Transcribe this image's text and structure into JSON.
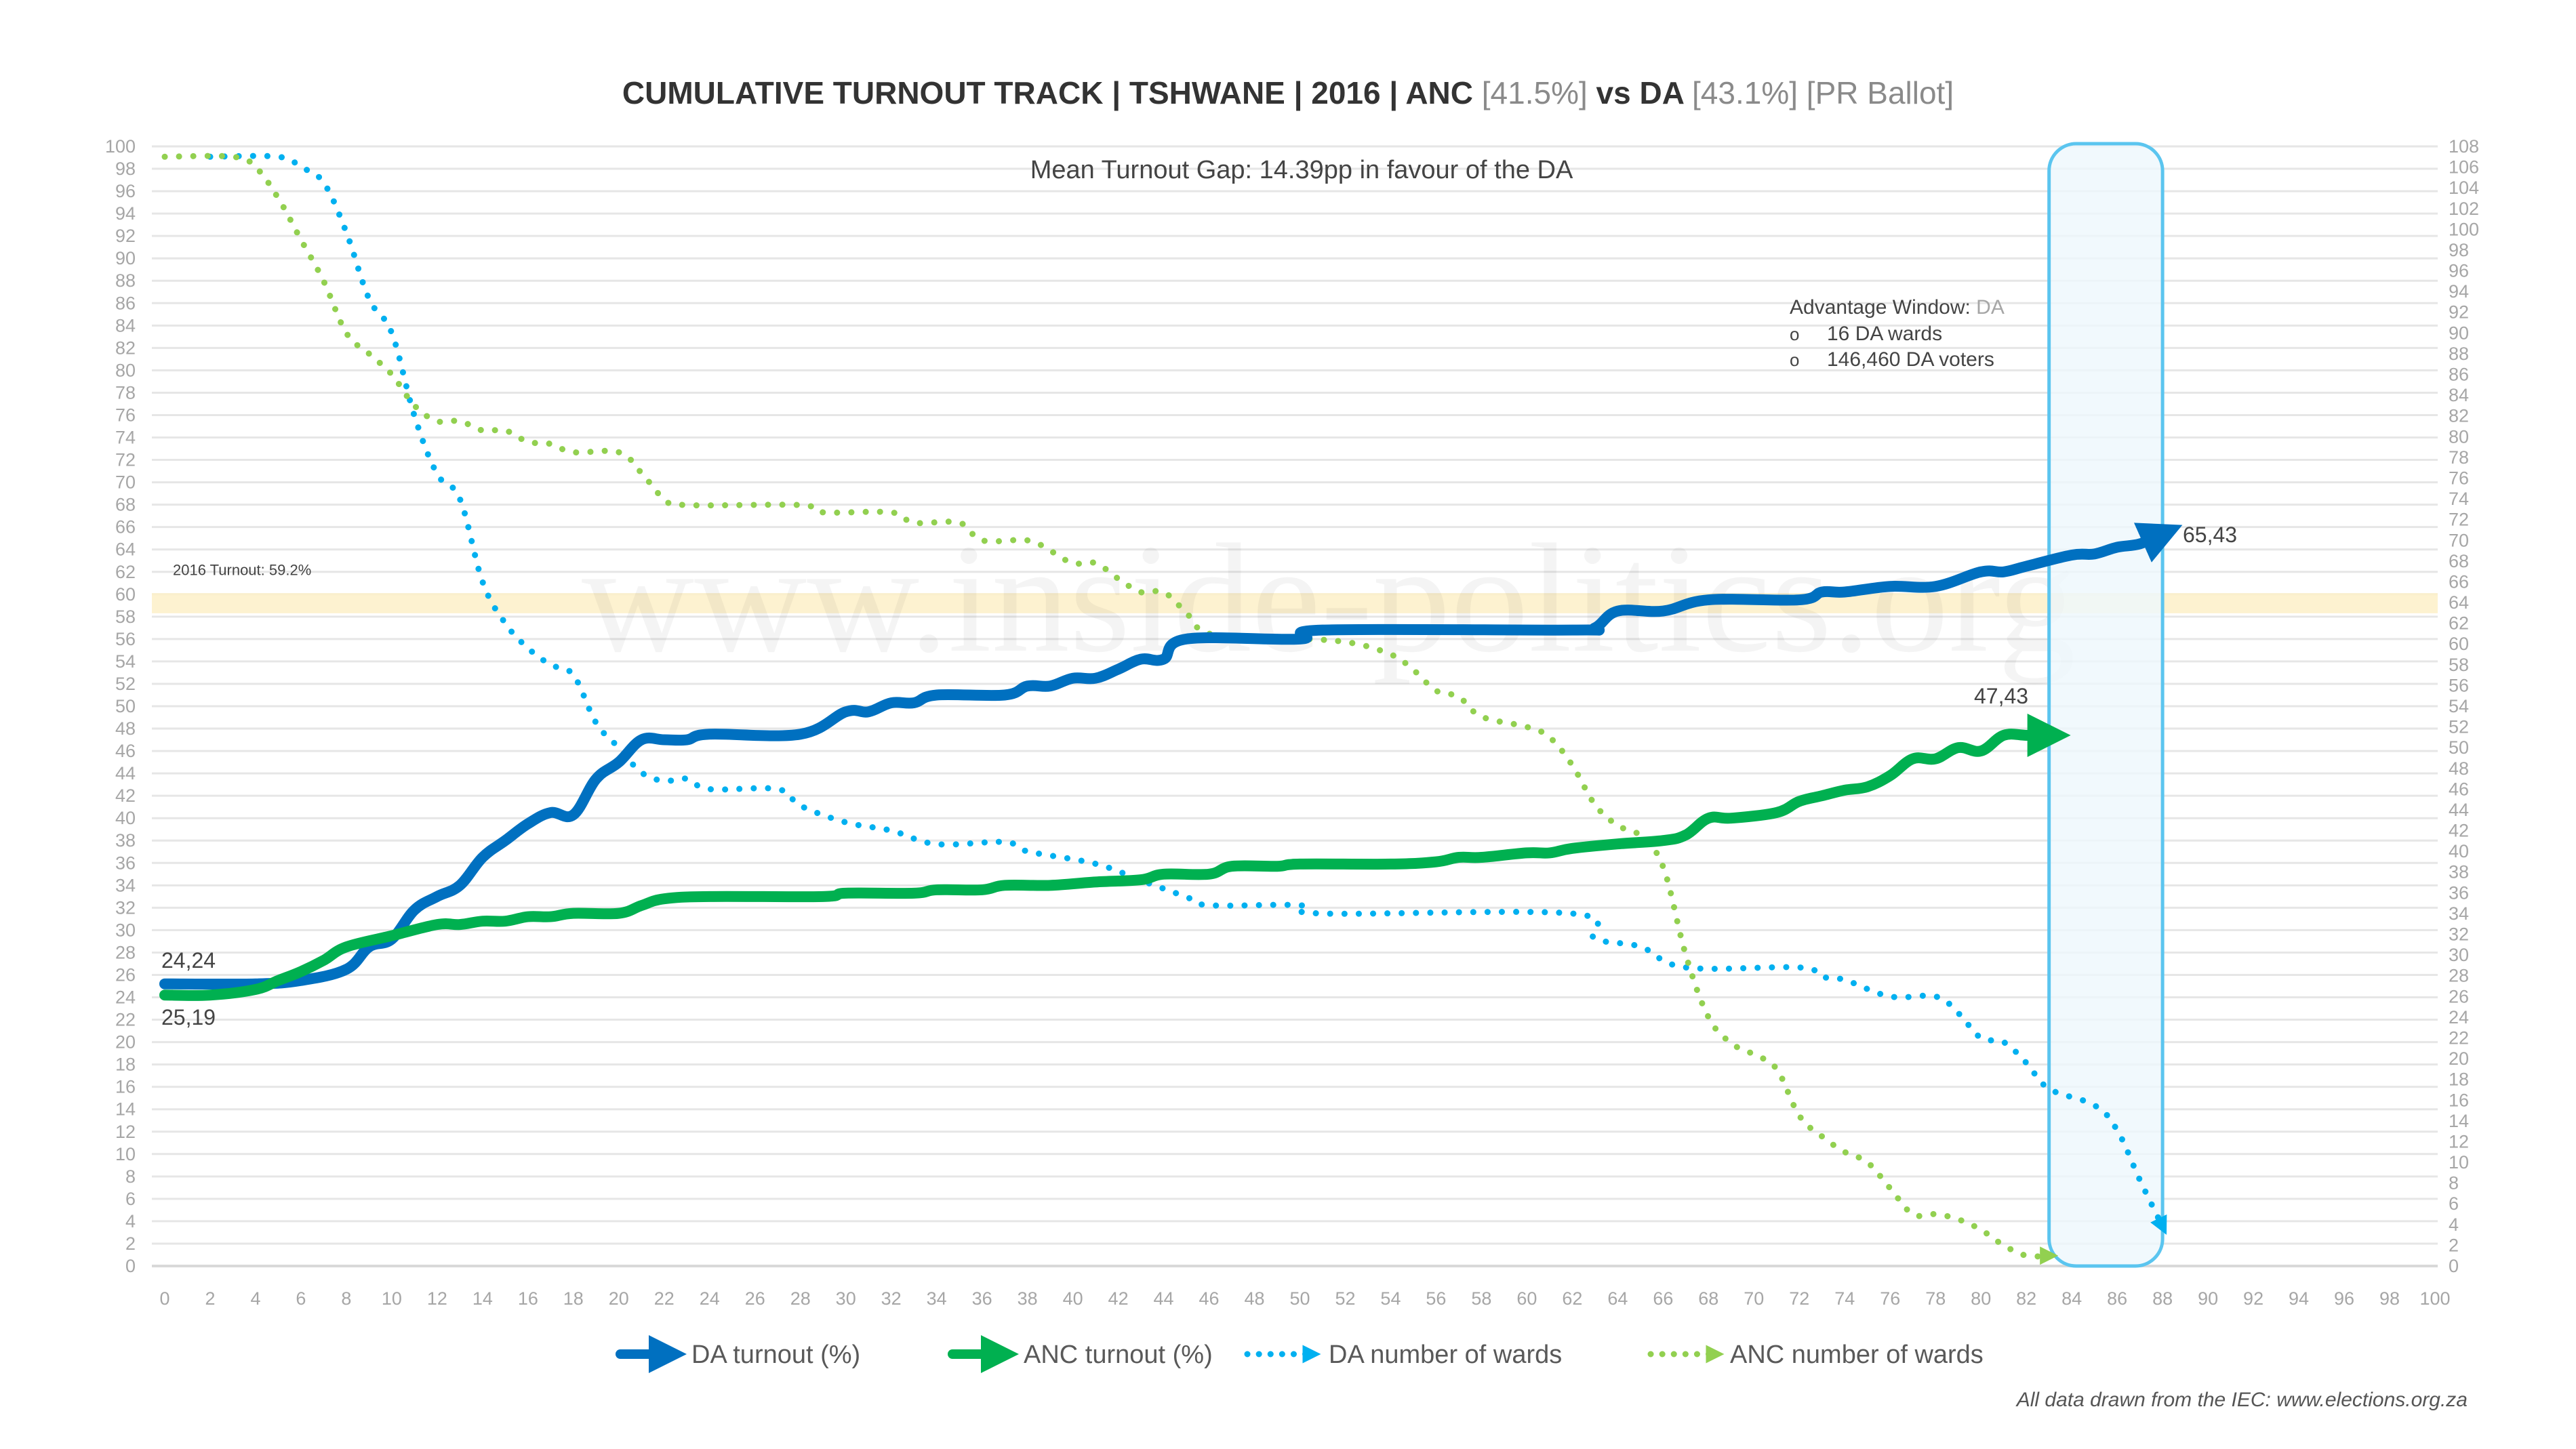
{
  "chart_data": {
    "type": "line",
    "title": {
      "main": "CUMULATIVE TURNOUT TRACK | TSHWANE | 2016 | ANC ",
      "anc_pct": "[41.5%]",
      "vs": " vs DA ",
      "da_pct": "[43.1%]",
      "ballot": " [PR Ballot]"
    },
    "subtitle": "Mean Turnout Gap: 14.39pp in favour of the DA",
    "xlim": [
      0,
      100
    ],
    "ylim_left": [
      0,
      100
    ],
    "ylim_right": [
      0,
      108
    ],
    "x_ticks": [
      0,
      2,
      4,
      6,
      8,
      10,
      12,
      14,
      16,
      18,
      20,
      22,
      24,
      26,
      28,
      30,
      32,
      34,
      36,
      38,
      40,
      42,
      44,
      46,
      48,
      50,
      52,
      54,
      56,
      58,
      60,
      62,
      64,
      66,
      68,
      70,
      72,
      74,
      76,
      78,
      80,
      82,
      84,
      86,
      88,
      90,
      92,
      94,
      96,
      98,
      100
    ],
    "y_ticks_left": [
      0,
      2,
      4,
      6,
      8,
      10,
      12,
      14,
      16,
      18,
      20,
      22,
      24,
      26,
      28,
      30,
      32,
      34,
      36,
      38,
      40,
      42,
      44,
      46,
      48,
      50,
      52,
      54,
      56,
      58,
      60,
      62,
      64,
      66,
      68,
      70,
      72,
      74,
      76,
      78,
      80,
      82,
      84,
      86,
      88,
      90,
      92,
      94,
      96,
      98,
      100
    ],
    "y_ticks_right": [
      0,
      2,
      4,
      6,
      8,
      10,
      12,
      14,
      16,
      18,
      20,
      22,
      24,
      26,
      28,
      30,
      32,
      34,
      36,
      38,
      40,
      42,
      44,
      46,
      48,
      50,
      52,
      54,
      56,
      58,
      60,
      62,
      64,
      66,
      68,
      70,
      72,
      74,
      76,
      78,
      80,
      82,
      84,
      86,
      88,
      90,
      92,
      94,
      96,
      98,
      100,
      102,
      104,
      106,
      108
    ],
    "grid": true,
    "reference_line": {
      "label": "2016 Turnout: 59.2%",
      "value": 59.2,
      "color": "#fdf0c8"
    },
    "watermark": "www.inside-politics.org",
    "advantage_window": {
      "x_range": [
        83,
        88
      ],
      "title": "Advantage Window: ",
      "party": "DA",
      "bullets": [
        "16 DA wards",
        "146,460 DA voters"
      ],
      "bullet_marker": "o",
      "color": "#5bc5ef"
    },
    "series": [
      {
        "name": "DA turnout (%)",
        "axis": "left",
        "style": "solid",
        "color": "#0070c0",
        "x": [
          0,
          4,
          6,
          8,
          9,
          10,
          11,
          12,
          13,
          14,
          15,
          16,
          17,
          18,
          19,
          20,
          21,
          22,
          23,
          24,
          28,
          30,
          31,
          32,
          33,
          34,
          37,
          38,
          39,
          40,
          41,
          42,
          43,
          44,
          45,
          50,
          51,
          62,
          63,
          64,
          66,
          68,
          72,
          73,
          74,
          76,
          78,
          80,
          81,
          82,
          84,
          85,
          86,
          87,
          88
        ],
        "y": [
          25.2,
          25.2,
          25.5,
          26.5,
          28.5,
          29.2,
          31.8,
          33,
          34,
          36.5,
          38,
          39.5,
          40.5,
          40.3,
          43.5,
          45,
          47,
          47,
          47,
          47.5,
          47.5,
          49.5,
          49.5,
          50.3,
          50.3,
          51,
          51,
          51.8,
          51.8,
          52.5,
          52.5,
          53.3,
          54.2,
          54.2,
          56,
          56,
          56.8,
          56.8,
          57,
          58.5,
          58.5,
          59.5,
          59.5,
          60.2,
          60.2,
          60.7,
          60.7,
          62,
          62,
          62.5,
          63.5,
          63.6,
          64.2,
          64.5,
          65.4
        ],
        "end_label": "65,43",
        "start_label": "25,19"
      },
      {
        "name": "ANC turnout (%)",
        "axis": "left",
        "style": "solid",
        "color": "#00b050",
        "x": [
          0,
          2,
          4,
          5,
          6,
          7,
          8,
          10,
          12,
          13,
          14,
          15,
          16,
          17,
          18,
          20,
          21,
          22,
          24,
          29,
          30,
          33,
          34,
          36,
          37,
          39,
          41,
          43,
          44,
          46,
          47,
          49,
          50,
          54,
          56,
          57,
          58,
          60,
          61,
          62,
          64,
          66,
          67,
          68,
          69,
          71,
          72,
          73,
          74,
          75,
          76,
          77,
          78,
          79,
          80,
          81,
          82,
          83
        ],
        "y": [
          24.2,
          24.2,
          24.7,
          25.5,
          26.3,
          27.3,
          28.5,
          29.5,
          30.5,
          30.5,
          30.8,
          30.8,
          31.2,
          31.2,
          31.5,
          31.5,
          32.2,
          32.8,
          33,
          33,
          33.3,
          33.3,
          33.6,
          33.6,
          34,
          34,
          34.3,
          34.5,
          35,
          35,
          35.7,
          35.7,
          35.9,
          35.9,
          36.1,
          36.5,
          36.5,
          36.9,
          36.9,
          37.3,
          37.7,
          38,
          38.5,
          40,
          40,
          40.5,
          41.5,
          42,
          42.5,
          42.8,
          43.8,
          45.3,
          45.3,
          46.3,
          46,
          47.4,
          47.4,
          47.4
        ],
        "end_label": "47,43",
        "start_label": "24,24"
      },
      {
        "name": "DA number of wards",
        "axis": "right",
        "style": "dotted",
        "color": "#00b0f0",
        "x": [
          2,
          5,
          6,
          7,
          8,
          9,
          10,
          11,
          12,
          13,
          14,
          15,
          16,
          17,
          18,
          19,
          20,
          21,
          22,
          23,
          24,
          27,
          28,
          30,
          32,
          34,
          37,
          38,
          41,
          43,
          45,
          46,
          50,
          51,
          62,
          63,
          65,
          67,
          72,
          73,
          74,
          76,
          78,
          79,
          80,
          81,
          82,
          83,
          85,
          86,
          87,
          88
        ],
        "y": [
          107,
          107,
          106,
          104.5,
          99.7,
          93.3,
          90,
          82,
          76.4,
          74,
          66,
          62,
          59.6,
          58,
          57,
          52.4,
          50,
          47.6,
          46.8,
          47,
          46,
          46,
          44.4,
          42.8,
          42,
          40.7,
          40.9,
          40,
          38.8,
          37.2,
          35.6,
          34.8,
          34.8,
          34,
          34,
          31.6,
          30.8,
          28.8,
          28.8,
          27.9,
          27.6,
          26,
          26,
          24.4,
          22,
          21.6,
          19.6,
          17.1,
          15.5,
          13.1,
          8.3,
          3.8
        ]
      },
      {
        "name": "ANC number of wards",
        "axis": "right",
        "style": "dotted",
        "color": "#92d050",
        "x": [
          0,
          3,
          4,
          5,
          6,
          7,
          8,
          9,
          10,
          11,
          12,
          13,
          14,
          15,
          16,
          17,
          18,
          20,
          21,
          22,
          23,
          28,
          29,
          32,
          33,
          35,
          36,
          38,
          39,
          40,
          41,
          42,
          43,
          44,
          45,
          46,
          49,
          52,
          54,
          55,
          56,
          57,
          58,
          60,
          61,
          62,
          63,
          64,
          65,
          66,
          67,
          68,
          69,
          70,
          71,
          72,
          73,
          74,
          75,
          76,
          77,
          78,
          79,
          80,
          81,
          82,
          83
        ],
        "y": [
          107,
          107,
          106,
          103,
          99,
          95,
          90,
          88,
          86,
          83,
          81.5,
          81.5,
          80.6,
          80.6,
          79.5,
          79.3,
          78.5,
          78.5,
          76.5,
          74,
          73.4,
          73.4,
          72.7,
          72.7,
          71.7,
          71.7,
          70,
          70,
          69,
          67.8,
          67.8,
          66.3,
          65,
          65,
          63,
          61,
          60.6,
          60.2,
          59,
          57.5,
          55.5,
          54.9,
          53,
          52,
          51,
          48.3,
          44.5,
          42.5,
          41.5,
          38.5,
          30,
          24,
          21.5,
          20.4,
          19,
          14.5,
          12.5,
          11,
          10,
          7.5,
          5,
          5,
          4.5,
          3.5,
          2,
          1,
          1
        ]
      }
    ],
    "legend": {
      "position": "bottom",
      "items": [
        "DA turnout (%)",
        "ANC turnout (%)",
        "DA number of wards",
        "ANC number of wards"
      ]
    },
    "source": "All data drawn from the IEC: www.elections.org.za"
  }
}
